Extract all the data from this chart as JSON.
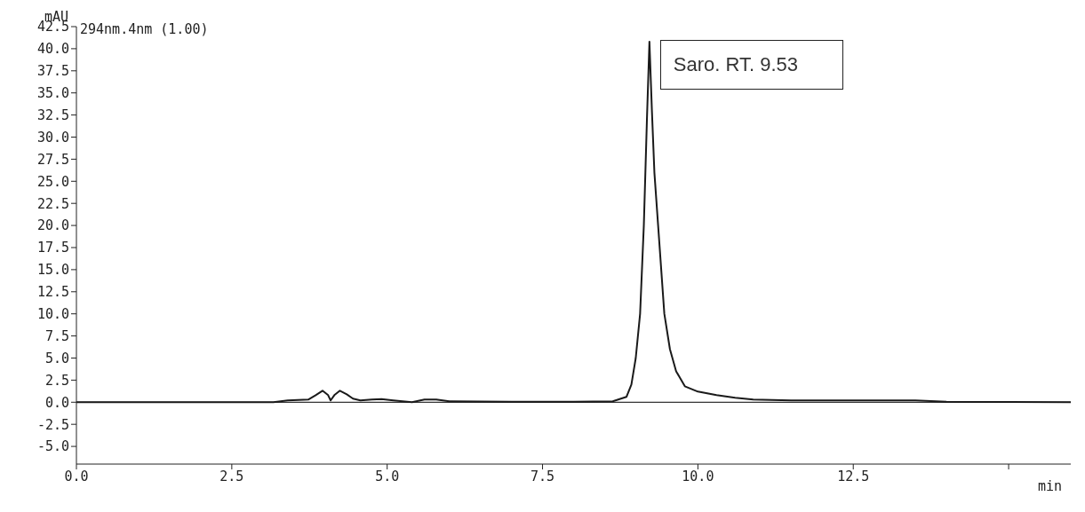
{
  "chart_data": {
    "type": "line",
    "ylabel": "mAU",
    "xlabel": "min",
    "annotations": [
      "294nm.4nm (1.00)",
      {
        "text": "Saro. RT. 9.53",
        "x": 9.22,
        "y": 40.8
      }
    ],
    "x": [
      0,
      3.0,
      3.17,
      3.4,
      3.73,
      3.85,
      3.96,
      4.05,
      4.09,
      4.15,
      4.24,
      4.35,
      4.45,
      4.57,
      4.75,
      4.91,
      5.1,
      5.4,
      5.6,
      5.79,
      6.0,
      7.0,
      8.0,
      8.63,
      8.85,
      8.93,
      9.0,
      9.07,
      9.13,
      9.18,
      9.22,
      9.26,
      9.3,
      9.36,
      9.46,
      9.55,
      9.65,
      9.79,
      10.0,
      10.3,
      10.6,
      10.89,
      11.5,
      12.5,
      13.5,
      14.0,
      16
    ],
    "series": [
      {
        "color": "#1a1a1a",
        "values": [
          0,
          0,
          0,
          0.2,
          0.3,
          0.8,
          1.3,
          0.8,
          0.2,
          0.8,
          1.3,
          0.9,
          0.4,
          0.2,
          0.3,
          0.35,
          0.2,
          0,
          0.3,
          0.3,
          0.1,
          0.05,
          0.05,
          0.1,
          0.6,
          2,
          5,
          10,
          20,
          32,
          40.8,
          33,
          26,
          20,
          10,
          6,
          3.5,
          1.8,
          1.2,
          0.8,
          0.5,
          0.3,
          0.2,
          0.2,
          0.2,
          0.05,
          0
        ]
      }
    ],
    "xlim": [
      0,
      16
    ],
    "xticks": [
      {
        "value": 0,
        "label": "0.0"
      },
      {
        "value": 2.5,
        "label": "2.5"
      },
      {
        "value": 5,
        "label": "5.0"
      },
      {
        "value": 7.5,
        "label": "7.5"
      },
      {
        "value": 10,
        "label": "10.0"
      },
      {
        "value": 12.5,
        "label": "12.5"
      },
      {
        "value": 15,
        "label": null
      }
    ],
    "ylim": [
      -7,
      42.5
    ],
    "yticks": [
      {
        "value": -5,
        "label": "-5.0"
      },
      -2.5,
      {
        "value": 0,
        "label": "0.0"
      },
      2.5,
      {
        "value": 5,
        "label": "5.0"
      },
      7.5,
      {
        "value": 10,
        "label": "10.0"
      },
      12.5,
      {
        "value": 15,
        "label": "15.0"
      },
      17.5,
      {
        "value": 20,
        "label": "20.0"
      },
      22.5,
      {
        "value": 25,
        "label": "25.0"
      },
      27.5,
      {
        "value": 30,
        "label": "30.0"
      },
      32.5,
      {
        "value": 35,
        "label": "35.0"
      },
      37.5,
      {
        "value": 40,
        "label": "40.0"
      },
      42.5
    ],
    "ref_lines": [
      {
        "axis": "y",
        "value": 0,
        "color": "#000000"
      }
    ],
    "grid": false,
    "legend": false,
    "marker": "none",
    "line_style": "solid"
  }
}
